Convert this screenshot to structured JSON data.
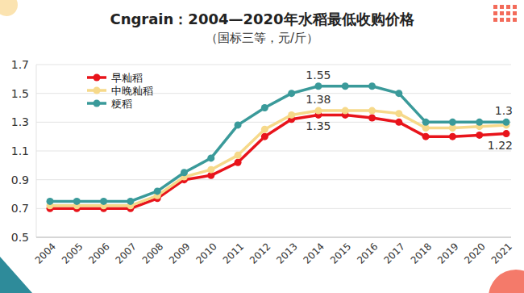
{
  "chart_data": {
    "type": "line",
    "title": "Cngrain：2004—2020年水稻最低收购价格",
    "subtitle": "（国标三等，元/斤）",
    "categories": [
      "2004",
      "2005",
      "2006",
      "2007",
      "2008",
      "2009",
      "2010",
      "2011",
      "2012",
      "2013",
      "2014",
      "2015",
      "2016",
      "2017",
      "2018",
      "2019",
      "2020",
      "2021"
    ],
    "series": [
      {
        "name": "早籼稻",
        "color": "#e8141b",
        "marker": "circle",
        "values": [
          0.7,
          0.7,
          0.7,
          0.7,
          0.77,
          0.9,
          0.93,
          1.02,
          1.2,
          1.32,
          1.35,
          1.35,
          1.33,
          1.3,
          1.2,
          1.2,
          1.21,
          1.22
        ]
      },
      {
        "name": "中晚籼稻",
        "color": "#f6d98a",
        "marker": "circle",
        "values": [
          0.72,
          0.72,
          0.72,
          0.72,
          0.79,
          0.92,
          0.97,
          1.07,
          1.25,
          1.35,
          1.38,
          1.38,
          1.38,
          1.36,
          1.26,
          1.26,
          1.27,
          1.28
        ]
      },
      {
        "name": "粳稻",
        "color": "#3a9a9a",
        "marker": "circle",
        "values": [
          0.75,
          0.75,
          0.75,
          0.75,
          0.82,
          0.95,
          1.05,
          1.28,
          1.4,
          1.5,
          1.55,
          1.55,
          1.55,
          1.5,
          1.3,
          1.3,
          1.3,
          1.3
        ]
      }
    ],
    "annotations": [
      {
        "text": "1.55",
        "x": "2014",
        "y": 1.55
      },
      {
        "text": "1.38",
        "x": "2014",
        "y": 1.38
      },
      {
        "text": "1.35",
        "x": "2014",
        "y": 1.35
      },
      {
        "text": "1.3",
        "x": "2021",
        "y": 1.3
      },
      {
        "text": "1.22",
        "x": "2021",
        "y": 1.22
      }
    ],
    "ylim": [
      0.5,
      1.7
    ],
    "yticks": [
      0.5,
      0.7,
      0.9,
      1.1,
      1.3,
      1.5,
      1.7
    ],
    "grid": true,
    "legend": "top-left"
  }
}
